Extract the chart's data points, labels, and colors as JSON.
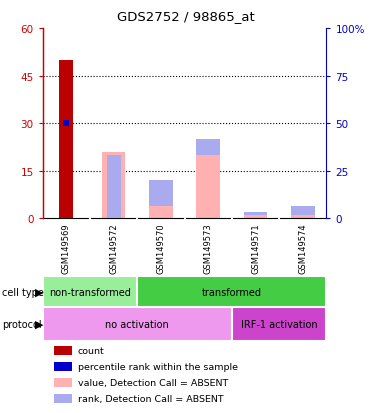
{
  "title": "GDS2752 / 98865_at",
  "samples": [
    "GSM149569",
    "GSM149572",
    "GSM149570",
    "GSM149573",
    "GSM149571",
    "GSM149574"
  ],
  "count_values": [
    50,
    0,
    0,
    0,
    0,
    0
  ],
  "count_color": "#bb0000",
  "percentile_rank_value": 30,
  "percentile_rank_sample_idx": 0,
  "percentile_rank_color": "#0000cc",
  "value_absent_values": [
    0,
    21,
    4,
    20,
    1,
    1
  ],
  "value_absent_color": "#ffb0b0",
  "rank_absent_values": [
    0,
    20,
    12,
    25,
    2,
    4
  ],
  "rank_absent_color": "#aaaaee",
  "ylim_left": [
    0,
    60
  ],
  "ylim_right": [
    0,
    100
  ],
  "yticks_left": [
    0,
    15,
    30,
    45,
    60
  ],
  "ytick_labels_left": [
    "0",
    "15",
    "30",
    "45",
    "60"
  ],
  "ytick_labels_right": [
    "0",
    "25",
    "50",
    "75",
    "100%"
  ],
  "left_axis_color": "#cc0000",
  "right_axis_color": "#0000cc",
  "cell_type_labels": [
    {
      "label": "non-transformed",
      "span": [
        0,
        2
      ],
      "color": "#99ee99"
    },
    {
      "label": "transformed",
      "span": [
        2,
        6
      ],
      "color": "#44cc44"
    }
  ],
  "protocol_labels": [
    {
      "label": "no activation",
      "span": [
        0,
        4
      ],
      "color": "#ee99ee"
    },
    {
      "label": "IRF-1 activation",
      "span": [
        4,
        6
      ],
      "color": "#cc44cc"
    }
  ],
  "legend_items": [
    {
      "label": "count",
      "color": "#bb0000"
    },
    {
      "label": "percentile rank within the sample",
      "color": "#0000cc"
    },
    {
      "label": "value, Detection Call = ABSENT",
      "color": "#ffb0b0"
    },
    {
      "label": "rank, Detection Call = ABSENT",
      "color": "#aaaaee"
    }
  ],
  "bg_color": "#ffffff",
  "sample_bg_color": "#cccccc",
  "bar_width": 0.5,
  "count_bar_width": 0.3
}
